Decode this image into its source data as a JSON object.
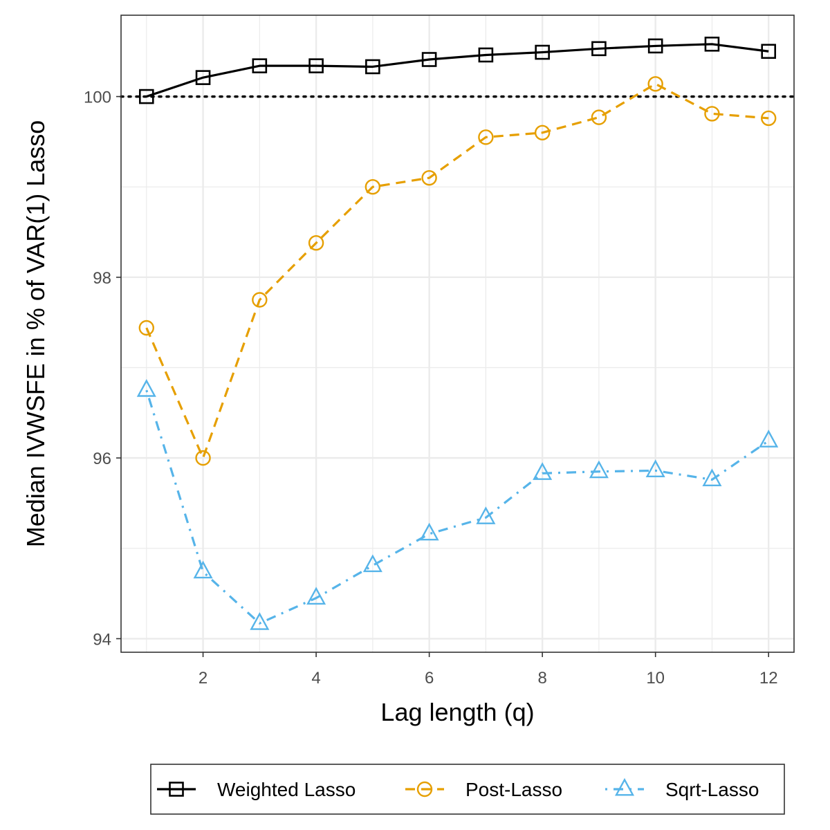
{
  "chart_data": {
    "type": "line",
    "xlabel": "Lag length (q)",
    "ylabel": "Median IVWSFE in % of VAR(1) Lasso",
    "xlim": [
      0.55,
      12.45
    ],
    "ylim": [
      93.85,
      100.9
    ],
    "x_ticks": [
      2,
      4,
      6,
      8,
      10,
      12
    ],
    "y_ticks": [
      94,
      96,
      98,
      100
    ],
    "x_tick_labels": [
      "2",
      "4",
      "6",
      "8",
      "10",
      "12"
    ],
    "y_tick_labels": [
      "94",
      "96",
      "98",
      "100"
    ],
    "grid": true,
    "reference_line": {
      "y": 100,
      "style": "dotted",
      "color": "#000000"
    },
    "legend_position": "bottom",
    "x": [
      1,
      2,
      3,
      4,
      5,
      6,
      7,
      8,
      9,
      10,
      11,
      12
    ],
    "series": [
      {
        "name": "Weighted Lasso",
        "color": "#000000",
        "line_style": "solid",
        "marker": "square",
        "values": [
          100.0,
          100.21,
          100.34,
          100.34,
          100.33,
          100.41,
          100.46,
          100.49,
          100.53,
          100.56,
          100.58,
          100.5
        ]
      },
      {
        "name": "Post-Lasso",
        "color": "#E69F00",
        "line_style": "dashed",
        "marker": "circle",
        "values": [
          97.44,
          96.0,
          97.75,
          98.38,
          99.0,
          99.1,
          99.55,
          99.6,
          99.77,
          100.14,
          99.81,
          99.76
        ]
      },
      {
        "name": "Sqrt-Lasso",
        "color": "#56B4E9",
        "line_style": "dotdash",
        "marker": "triangle",
        "values": [
          96.75,
          94.74,
          94.17,
          94.45,
          94.81,
          95.16,
          95.34,
          95.83,
          95.85,
          95.86,
          95.76,
          96.19
        ]
      }
    ]
  }
}
